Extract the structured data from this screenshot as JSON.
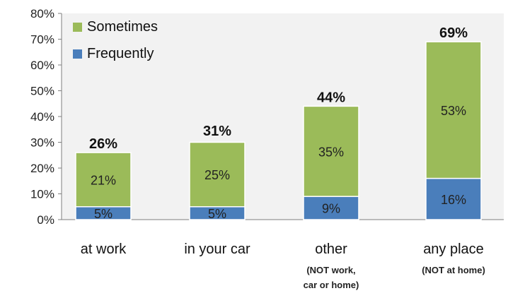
{
  "chart_data": {
    "type": "bar",
    "stacked": true,
    "categories": [
      "at work",
      "in your car",
      "other",
      "any place"
    ],
    "category_sublabels": [
      "",
      "",
      "(NOT work,\ncar or home)",
      "(NOT at home)"
    ],
    "series": [
      {
        "name": "Frequently",
        "values": [
          5,
          5,
          9,
          16
        ],
        "labels": [
          "5%",
          "5%",
          "9%",
          "16%"
        ],
        "color": "#4a7ebb"
      },
      {
        "name": "Sometimes",
        "values": [
          21,
          25,
          35,
          53
        ],
        "labels": [
          "21%",
          "25%",
          "35%",
          "53%"
        ],
        "color": "#9bbb59"
      }
    ],
    "totals": [
      26,
      31,
      44,
      69
    ],
    "total_labels": [
      "26%",
      "31%",
      "44%",
      "69%"
    ],
    "y_ticks": [
      "0%",
      "10%",
      "20%",
      "30%",
      "40%",
      "50%",
      "60%",
      "70%",
      "80%"
    ],
    "ylim": [
      0,
      80
    ],
    "grid": false,
    "legend_position": "top-left",
    "legend_order": [
      "Sometimes",
      "Frequently"
    ],
    "background": "#ffffff",
    "plot_background": "#f2f2f2"
  }
}
